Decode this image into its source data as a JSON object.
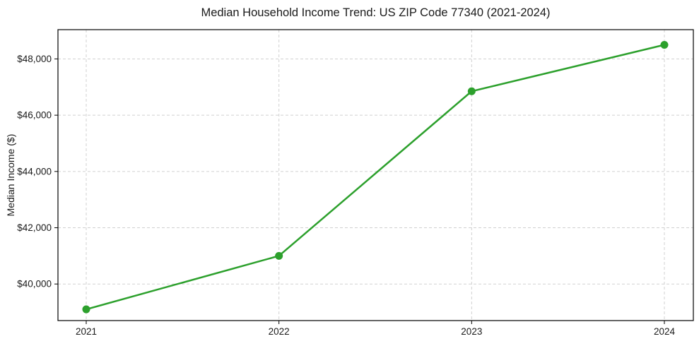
{
  "chart_data": {
    "type": "line",
    "title": "Median Household Income Trend: US ZIP Code 77340 (2021-2024)",
    "xlabel": "",
    "ylabel": "Median Income ($)",
    "categories": [
      "2021",
      "2022",
      "2023",
      "2024"
    ],
    "series": [
      {
        "name": "Median Household Income",
        "values": [
          39100,
          41000,
          46850,
          48500
        ],
        "color": "#2ca02c",
        "marker": "circle"
      }
    ],
    "ylim": [
      38700,
      49040
    ],
    "yticks": [
      40000,
      42000,
      44000,
      46000,
      48000
    ],
    "ytick_labels": [
      "$40,000",
      "$42,000",
      "$44,000",
      "$46,000",
      "$48,000"
    ],
    "grid": "both, dashed",
    "legend_position": "none",
    "colors": {
      "line": "#2ca02c",
      "grid": "#cccccc",
      "spine": "#000000",
      "text": "#1a1a1a",
      "background": "#ffffff"
    }
  }
}
